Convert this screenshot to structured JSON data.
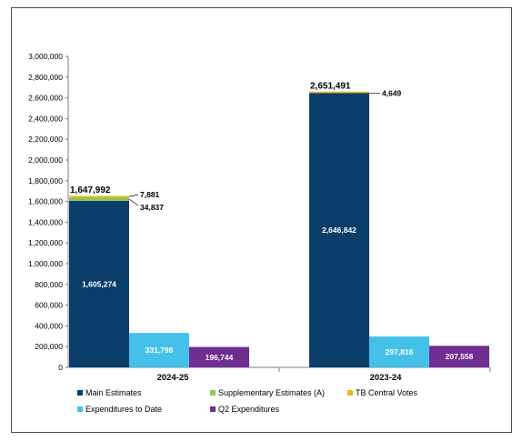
{
  "chart_data": {
    "type": "bar",
    "stacked_and_grouped": true,
    "categories": [
      "2024-25",
      "2023-24"
    ],
    "ylim": [
      0,
      3000000
    ],
    "y_ticks": [
      "0",
      "200,000",
      "400,000",
      "600,000",
      "800,000",
      "1,000,000",
      "1,200,000",
      "1,400,000",
      "1,600,000",
      "1,800,000",
      "2,000,000",
      "2,200,000",
      "2,400,000",
      "2,600,000",
      "2,800,000",
      "3,000,000"
    ],
    "y_tick_values": [
      0,
      200000,
      400000,
      600000,
      800000,
      1000000,
      1200000,
      1400000,
      1600000,
      1800000,
      2000000,
      2200000,
      2400000,
      2600000,
      2800000,
      3000000
    ],
    "grid": false,
    "legend_position": "bottom",
    "series": [
      {
        "name": "Main Estimates",
        "color": "#0b3d6b",
        "stack": "authorities",
        "values": [
          1605274,
          2646842
        ],
        "labels": [
          "1,605,274",
          "2,646,842"
        ]
      },
      {
        "name": "Supplementary Estimates (A)",
        "color": "#92c850",
        "stack": "authorities",
        "values": [
          34837,
          0
        ],
        "labels": [
          "34,837",
          ""
        ]
      },
      {
        "name": "TB Central Votes",
        "color": "#f2b21b",
        "stack": "authorities",
        "values": [
          7881,
          4649
        ],
        "labels": [
          "7,881",
          "4,649"
        ]
      },
      {
        "name": "Expenditures to Date",
        "color": "#44c1ea",
        "stack": "to_date",
        "values": [
          331798,
          297816
        ],
        "labels": [
          "331,798",
          "297,816"
        ]
      },
      {
        "name": "Q2 Expenditures",
        "color": "#6f2c91",
        "stack": "q2",
        "values": [
          196744,
          207558
        ],
        "labels": [
          "196,744",
          "207,558"
        ]
      }
    ],
    "totals": [
      {
        "value": 1647992,
        "label": "1,647,992"
      },
      {
        "value": 2651491,
        "label": "2,651,491"
      }
    ],
    "legend": [
      [
        "Main Estimates",
        "Supplementary Estimates (A)",
        "TB Central Votes"
      ],
      [
        "Expenditures to Date",
        "Q2 Expenditures"
      ]
    ]
  }
}
